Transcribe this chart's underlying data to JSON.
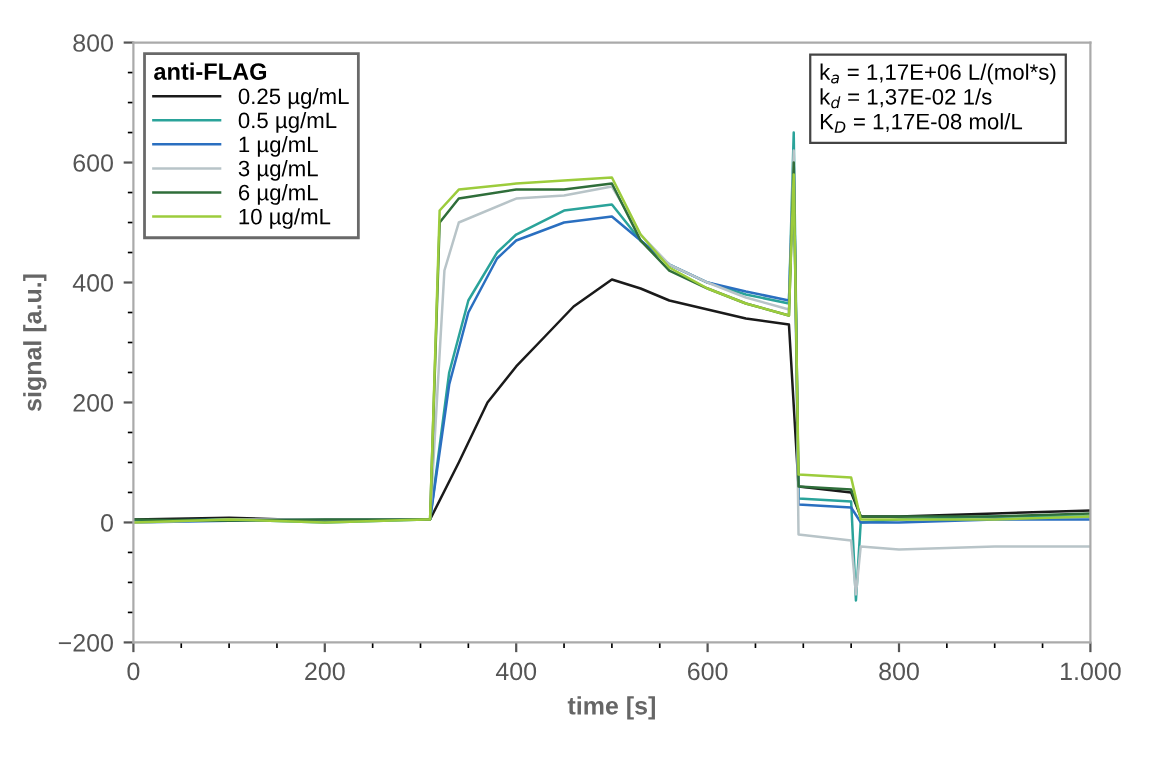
{
  "chart_data": {
    "type": "line",
    "xlabel": "time [s]",
    "ylabel": "signal [a.u.]",
    "legend_title": "anti-FLAG",
    "legend": "top left",
    "grid": false,
    "marker": "none",
    "line_style": "solid",
    "xlim": [
      0,
      1000
    ],
    "xticks": [
      0,
      200,
      400,
      600,
      800,
      {
        "value": 1000,
        "label": "1.000"
      }
    ],
    "ylim": [
      -200,
      800
    ],
    "yticks": [
      {
        "value": -200,
        "label": "−200"
      },
      0,
      200,
      400,
      600,
      800
    ],
    "annotations": [
      "k$_{a}$ = 1,17E+06 L/(mol*s)",
      "k$_{d}$ = 1,37E-02 1/s",
      "K$_{D}$ = 1,17E-08 mol/L"
    ],
    "series": [
      {
        "name": "0.25 µg/mL",
        "color": "#1a1a1a",
        "x": [
          0,
          100,
          200,
          305,
          310,
          340,
          370,
          400,
          430,
          460,
          500,
          530,
          560,
          600,
          640,
          685,
          695,
          750,
          760,
          800,
          900,
          1000
        ],
        "values": [
          5,
          8,
          3,
          5,
          5,
          100,
          200,
          260,
          310,
          360,
          405,
          390,
          370,
          355,
          340,
          330,
          60,
          50,
          10,
          10,
          15,
          20
        ]
      },
      {
        "name": "0.5 µg/mL",
        "color": "#2aa39a",
        "x": [
          0,
          100,
          200,
          305,
          310,
          330,
          350,
          380,
          400,
          450,
          500,
          530,
          560,
          600,
          640,
          685,
          690,
          695,
          750,
          755,
          760,
          800,
          900,
          1000
        ],
        "values": [
          3,
          5,
          0,
          5,
          5,
          250,
          370,
          450,
          480,
          520,
          530,
          470,
          430,
          400,
          380,
          365,
          650,
          40,
          35,
          -130,
          0,
          5,
          10,
          10
        ]
      },
      {
        "name": "1 µg/mL",
        "color": "#2a6fc0",
        "x": [
          0,
          100,
          200,
          305,
          310,
          330,
          350,
          380,
          400,
          450,
          500,
          530,
          560,
          600,
          640,
          685,
          690,
          695,
          750,
          760,
          800,
          900,
          1000
        ],
        "values": [
          0,
          3,
          5,
          5,
          5,
          230,
          350,
          440,
          470,
          500,
          510,
          470,
          430,
          400,
          385,
          370,
          600,
          30,
          25,
          0,
          0,
          5,
          5
        ]
      },
      {
        "name": "3 µg/mL",
        "color": "#b8c4c8",
        "x": [
          0,
          100,
          305,
          310,
          325,
          340,
          400,
          450,
          500,
          530,
          560,
          600,
          640,
          685,
          690,
          695,
          750,
          755,
          760,
          800,
          900,
          1000
        ],
        "values": [
          0,
          5,
          5,
          5,
          420,
          500,
          540,
          545,
          560,
          480,
          430,
          400,
          375,
          355,
          620,
          -20,
          -30,
          -120,
          -40,
          -45,
          -40,
          -40
        ]
      },
      {
        "name": "6 µg/mL",
        "color": "#2f6e3a",
        "x": [
          0,
          100,
          200,
          305,
          310,
          320,
          340,
          400,
          450,
          500,
          530,
          560,
          600,
          640,
          685,
          690,
          695,
          750,
          760,
          800,
          900,
          1000
        ],
        "values": [
          5,
          3,
          5,
          5,
          5,
          500,
          540,
          555,
          555,
          565,
          470,
          420,
          390,
          365,
          345,
          600,
          60,
          55,
          10,
          10,
          10,
          15
        ]
      },
      {
        "name": "10 µg/mL",
        "color": "#9ccc3c",
        "x": [
          0,
          100,
          200,
          305,
          310,
          320,
          340,
          400,
          450,
          500,
          530,
          560,
          600,
          640,
          685,
          690,
          695,
          750,
          760,
          800,
          900,
          1000
        ],
        "values": [
          0,
          5,
          0,
          5,
          5,
          520,
          555,
          565,
          570,
          575,
          480,
          425,
          390,
          365,
          345,
          580,
          80,
          75,
          5,
          5,
          5,
          10
        ]
      }
    ]
  }
}
